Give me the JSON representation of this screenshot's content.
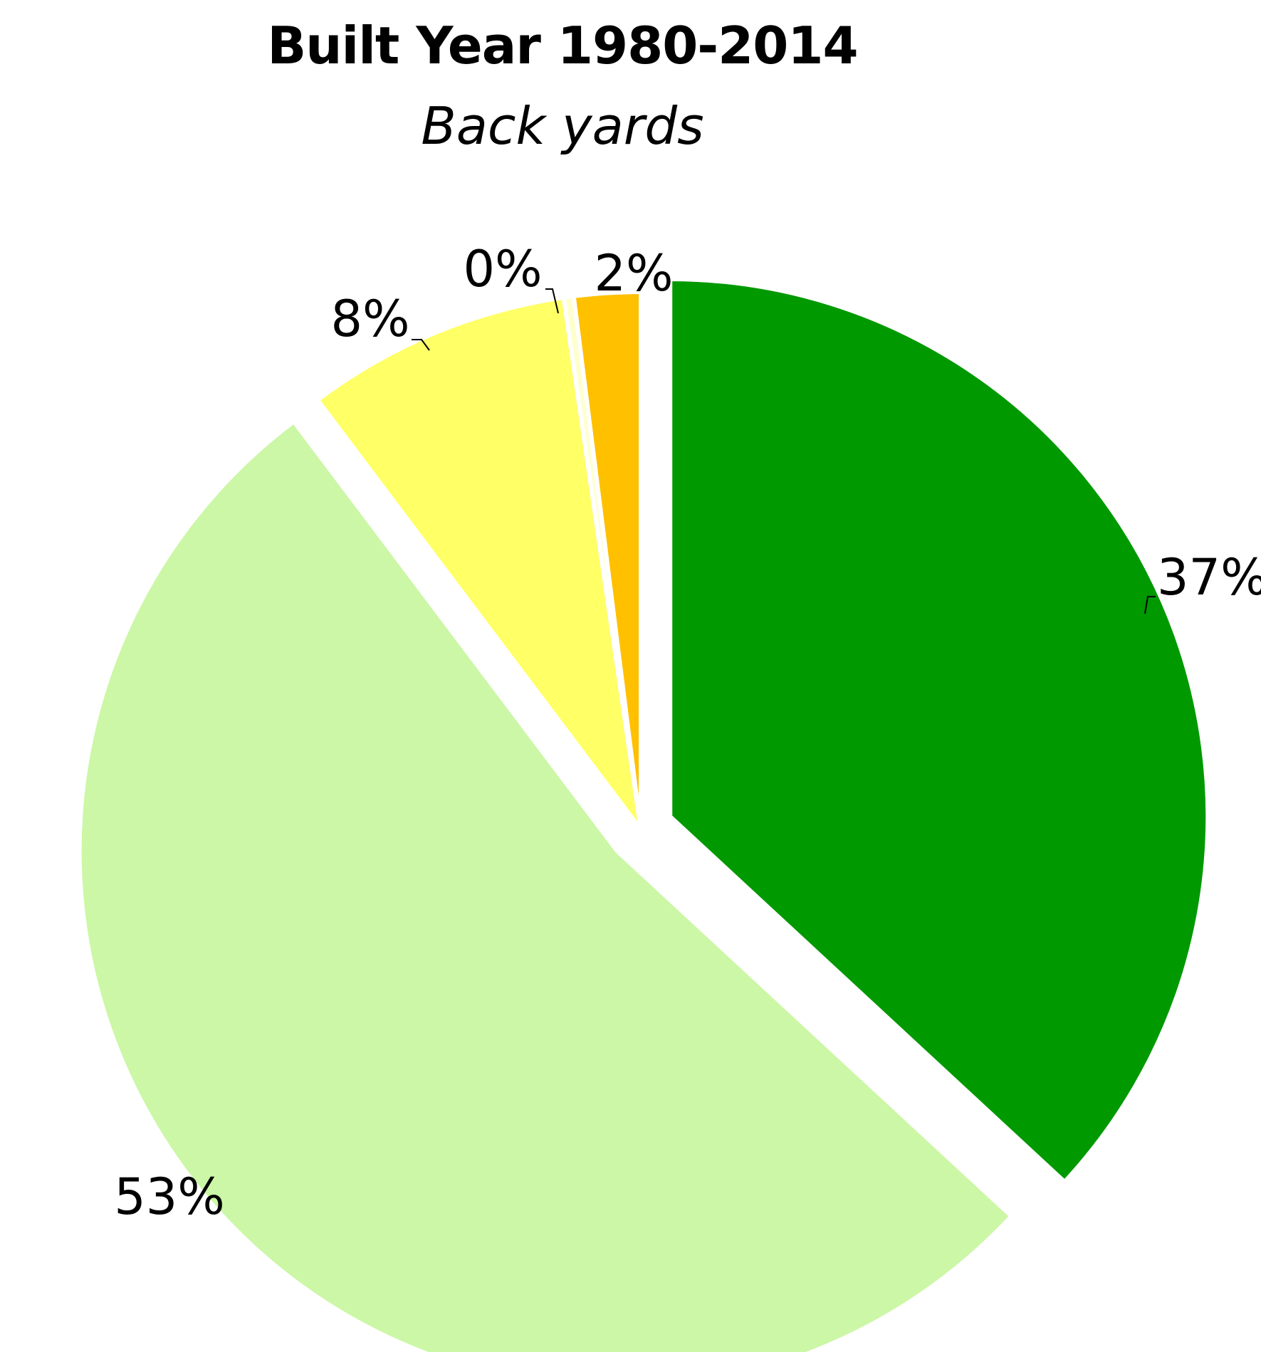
{
  "chart_data": {
    "type": "pie",
    "title": "Built Year 1980-2014",
    "subtitle": "Back yards",
    "slices": [
      {
        "label": "37%",
        "value": 37,
        "color": "#009900"
      },
      {
        "label": "53%",
        "value": 53,
        "color": "#ccf7a6"
      },
      {
        "label": "8%",
        "value": 8,
        "color": "#ffff66"
      },
      {
        "label": "0%",
        "value": 0.3,
        "color": "#ffffcc"
      },
      {
        "label": "2%",
        "value": 2,
        "color": "#ffc000"
      }
    ],
    "legend": "none"
  }
}
